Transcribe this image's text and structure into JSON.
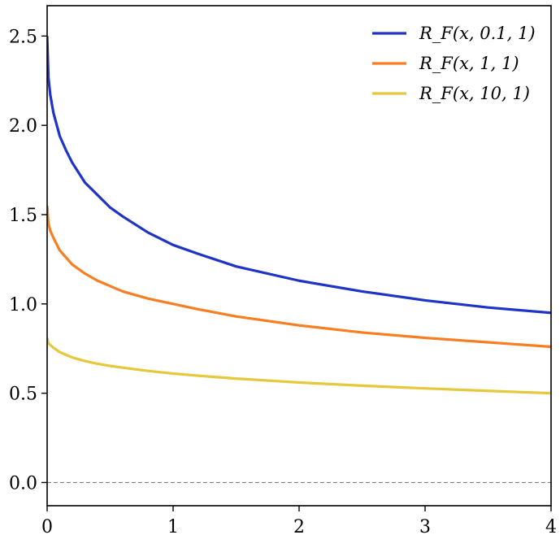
{
  "chart_data": {
    "type": "line",
    "title": "",
    "xlabel": "",
    "ylabel": "",
    "xlim": [
      0,
      4
    ],
    "ylim": [
      -0.13,
      2.67
    ],
    "x_ticks": [
      {
        "value": 0,
        "label": "0"
      },
      {
        "value": 1,
        "label": "1"
      },
      {
        "value": 2,
        "label": "2"
      },
      {
        "value": 3,
        "label": "3"
      },
      {
        "value": 4,
        "label": "4"
      }
    ],
    "y_ticks": [
      {
        "value": 0.0,
        "label": "0.0"
      },
      {
        "value": 0.5,
        "label": "0.5"
      },
      {
        "value": 1.0,
        "label": "1.0"
      },
      {
        "value": 1.5,
        "label": "1.5"
      },
      {
        "value": 2.0,
        "label": "2.0"
      },
      {
        "value": 2.5,
        "label": "2.5"
      }
    ],
    "grid": false,
    "legend_position": "top-right",
    "reference_line": {
      "y": 0.0,
      "style": "dashed",
      "color": "#808080"
    },
    "series": [
      {
        "name": "R_F(x, 0.1, 1)",
        "color": "#1f33c4",
        "x": [
          0,
          0.01,
          0.025,
          0.05,
          0.1,
          0.15,
          0.2,
          0.3,
          0.4,
          0.5,
          0.6,
          0.8,
          1.0,
          1.2,
          1.5,
          2.0,
          2.5,
          3.0,
          3.5,
          4.0
        ],
        "y": [
          2.5,
          2.27,
          2.17,
          2.07,
          1.94,
          1.86,
          1.79,
          1.68,
          1.61,
          1.54,
          1.49,
          1.4,
          1.33,
          1.28,
          1.21,
          1.13,
          1.07,
          1.02,
          0.98,
          0.95
        ]
      },
      {
        "name": "R_F(x, 1, 1)",
        "color": "#f77e22",
        "x": [
          0,
          0.01,
          0.025,
          0.05,
          0.1,
          0.15,
          0.2,
          0.3,
          0.4,
          0.5,
          0.6,
          0.8,
          1.0,
          1.2,
          1.5,
          2.0,
          2.5,
          3.0,
          3.5,
          4.0
        ],
        "y": [
          1.55,
          1.45,
          1.41,
          1.37,
          1.3,
          1.26,
          1.22,
          1.17,
          1.13,
          1.1,
          1.07,
          1.03,
          1.0,
          0.97,
          0.93,
          0.88,
          0.84,
          0.81,
          0.785,
          0.76
        ]
      },
      {
        "name": "R_F(x, 10, 1)",
        "color": "#e5c83c",
        "x": [
          0,
          0.01,
          0.025,
          0.05,
          0.1,
          0.15,
          0.2,
          0.3,
          0.4,
          0.5,
          0.6,
          0.8,
          1.0,
          1.2,
          1.5,
          2.0,
          2.5,
          3.0,
          3.5,
          4.0
        ],
        "y": [
          0.81,
          0.78,
          0.77,
          0.755,
          0.73,
          0.715,
          0.7,
          0.68,
          0.665,
          0.653,
          0.643,
          0.625,
          0.61,
          0.598,
          0.582,
          0.56,
          0.542,
          0.527,
          0.513,
          0.5
        ]
      }
    ]
  }
}
